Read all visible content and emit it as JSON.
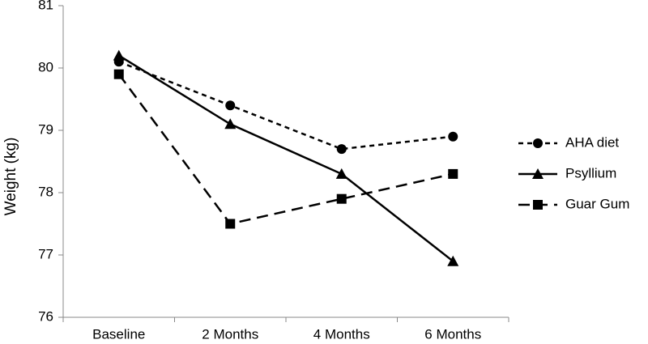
{
  "chart_data": {
    "type": "line",
    "y_label": "Weight (kg)",
    "categories": [
      "Baseline",
      "2 Months",
      "4 Months",
      "6 Months"
    ],
    "series": [
      {
        "name": "AHA diet",
        "color": "#000000",
        "marker": "circle",
        "dash": "short",
        "values": [
          80.1,
          79.4,
          78.7,
          78.9
        ]
      },
      {
        "name": "Psyllium",
        "color": "#000000",
        "marker": "triangle",
        "dash": "solid",
        "values": [
          80.2,
          79.1,
          78.3,
          76.9
        ]
      },
      {
        "name": "Guar Gum",
        "color": "#000000",
        "marker": "square",
        "dash": "long",
        "values": [
          79.9,
          77.5,
          77.9,
          78.3
        ]
      }
    ],
    "ylim": [
      76,
      81
    ],
    "yticks": [
      76,
      77,
      78,
      79,
      80,
      81
    ],
    "grid": false,
    "legend": "right"
  }
}
